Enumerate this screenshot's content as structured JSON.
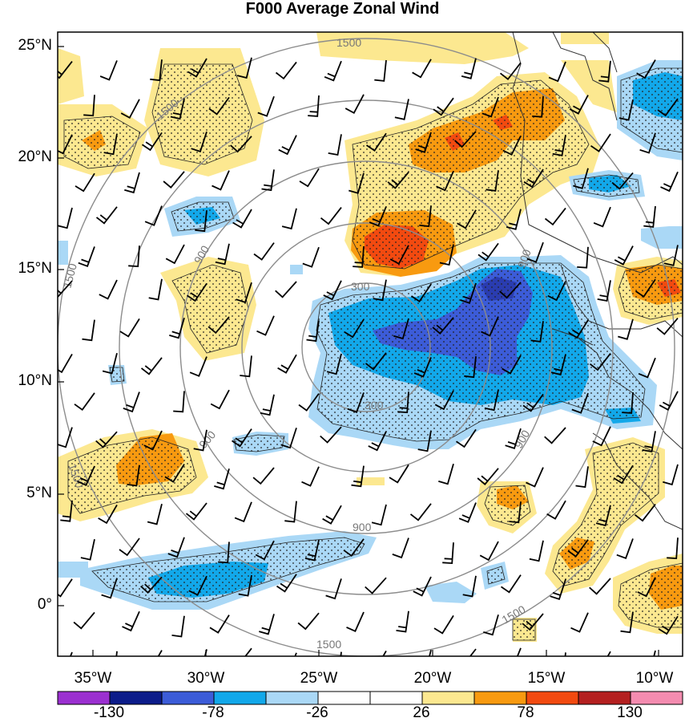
{
  "title": "F000 Average Zonal Wind",
  "lat_labels": [
    "25°N",
    "20°N",
    "15°N",
    "10°N",
    "5°N",
    "0°"
  ],
  "lon_labels": [
    "35°W",
    "30°W",
    "25°W",
    "20°W",
    "15°W",
    "10°W"
  ],
  "range_ring_labels": [
    "300",
    "900",
    "1500"
  ],
  "colorbar": {
    "colors": [
      "#9b30d0",
      "#0c1c8a",
      "#3c5cd8",
      "#12a8ea",
      "#aad8f6",
      "#ffffff",
      "#ffffff",
      "#fce890",
      "#f89a10",
      "#f24a10",
      "#b42020",
      "#f48cb0"
    ],
    "labels": [
      "-130",
      "-78",
      "-26",
      "26",
      "78",
      "130"
    ]
  },
  "colors": {
    "yellow": "#fce890",
    "orange": "#f89a10",
    "red": "#f24a10",
    "lightblue": "#aad8f6",
    "blue": "#12a8ea",
    "darkblue": "#3c5cd8",
    "ring": "#8c8c8c"
  }
}
